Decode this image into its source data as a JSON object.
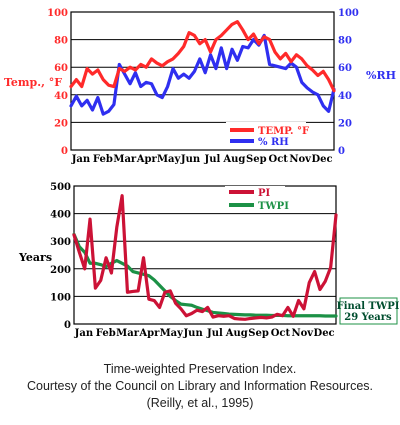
{
  "colors": {
    "temp": "#ff2a2a",
    "rh": "#2f2ff0",
    "pi": "#cc1236",
    "twpi": "#1c9146",
    "frame": "#000000",
    "final_label": "#004d2e",
    "final_bg": "#ffffff"
  },
  "chart_data": [
    {
      "type": "line",
      "x_labels": [
        "Jan",
        "Feb",
        "Mar",
        "Apr",
        "May",
        "Jun",
        "Jul",
        "Aug",
        "Sep",
        "Oct",
        "Nov",
        "Dec"
      ],
      "ylabel": "Temp., °F",
      "y2label": "%RH",
      "ylim": [
        0,
        100
      ],
      "y2lim": [
        0,
        100
      ],
      "yticks": [
        0,
        20,
        40,
        60,
        80,
        100
      ],
      "y2ticks": [
        0,
        20,
        40,
        60,
        80,
        100
      ],
      "grid": "horizontal",
      "legend_position": "bottom-right",
      "series": [
        {
          "name": "TEMP. °F",
          "axis": "left",
          "values": [
            46,
            51,
            46,
            59,
            55,
            58,
            51,
            47,
            46,
            59,
            57,
            60,
            58,
            62,
            60,
            66,
            63,
            61,
            64,
            66,
            70,
            75,
            85,
            83,
            77,
            80,
            71,
            80,
            83,
            87,
            91,
            93,
            87,
            80,
            84,
            77,
            82,
            80,
            71,
            66,
            70,
            64,
            69,
            66,
            61,
            58,
            54,
            57,
            51,
            43
          ]
        },
        {
          "name": "% RH",
          "axis": "right",
          "values": [
            32,
            39,
            32,
            36,
            29,
            38,
            26,
            28,
            33,
            62,
            55,
            48,
            56,
            46,
            49,
            48,
            40,
            38,
            46,
            59,
            52,
            55,
            52,
            57,
            66,
            56,
            69,
            59,
            74,
            59,
            73,
            65,
            75,
            74,
            80,
            76,
            83,
            62,
            61,
            60,
            59,
            63,
            60,
            49,
            45,
            42,
            40,
            32,
            28,
            44
          ]
        }
      ]
    },
    {
      "type": "line",
      "x_labels": [
        "Jan",
        "Feb",
        "Mar",
        "Apr",
        "May",
        "Jun",
        "Jul",
        "Aug",
        "Sep",
        "Oct",
        "Nov",
        "Dec"
      ],
      "ylabel": "Years",
      "ylim": [
        0,
        500
      ],
      "yticks": [
        0,
        100,
        200,
        300,
        400,
        500
      ],
      "grid": "horizontal",
      "legend_position": "top-center",
      "annotations": [
        "Final TWPI",
        "29 Years"
      ],
      "series": [
        {
          "name": "PI",
          "values": [
            323,
            260,
            200,
            380,
            130,
            158,
            240,
            185,
            350,
            465,
            115,
            118,
            120,
            240,
            90,
            85,
            60,
            115,
            120,
            75,
            55,
            30,
            38,
            50,
            45,
            60,
            25,
            30,
            28,
            30,
            20,
            18,
            17,
            20,
            22,
            24,
            22,
            25,
            35,
            30,
            60,
            28,
            85,
            55,
            150,
            190,
            125,
            155,
            205,
            395
          ]
        },
        {
          "name": "TWPI",
          "values": [
            325,
            280,
            260,
            220,
            220,
            215,
            208,
            220,
            230,
            220,
            210,
            190,
            185,
            180,
            175,
            160,
            140,
            120,
            100,
            85,
            72,
            70,
            68,
            60,
            54,
            48,
            42,
            40,
            38,
            36,
            35,
            34,
            33,
            33,
            32,
            32,
            32,
            31,
            31,
            31,
            30,
            30,
            30,
            30,
            30,
            30,
            30,
            29,
            29,
            29
          ]
        }
      ]
    }
  ],
  "caption": {
    "line1": "Time-weighted Preservation Index.",
    "line2": "Courtesy of the Council on Library and Information Resources.",
    "line3": "(Reilly, et al., 1995)"
  }
}
